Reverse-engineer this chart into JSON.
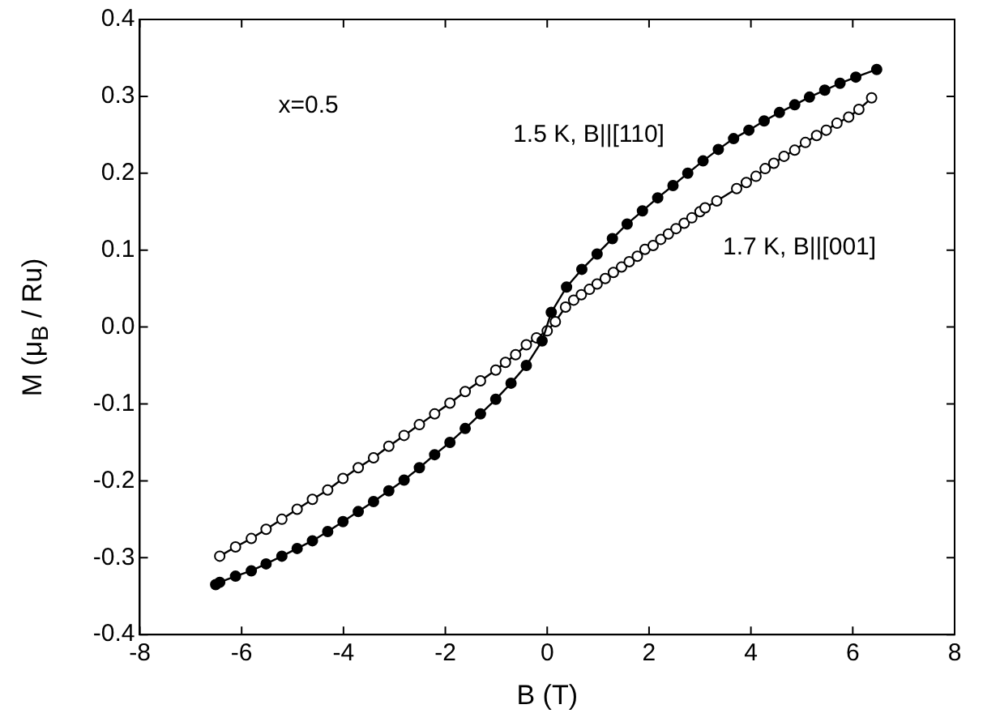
{
  "chart_data": {
    "type": "line",
    "xlabel": "B (T)",
    "ylabel": "M (μ$_{B}$ / Ru)",
    "xlim": [
      -8,
      8
    ],
    "xticks": [
      -8,
      -6,
      -4,
      -2,
      0,
      2,
      4,
      6,
      8
    ],
    "ylim": [
      -0.4,
      0.4
    ],
    "yticks": [
      -0.4,
      -0.3,
      -0.2,
      -0.1,
      {
        "value": 0,
        "label": "0.0"
      },
      0.1,
      0.2,
      0.3,
      0.4
    ],
    "marker": "circle",
    "annotations": [
      "x=0.5"
    ],
    "series": [
      {
        "name": "1.5 K, B||[110]",
        "color": "#000000",
        "x": [
          -6.51,
          -6.43,
          -6.12,
          -5.81,
          -5.52,
          -5.21,
          -4.91,
          -4.61,
          -4.31,
          -4.01,
          -3.71,
          -3.41,
          -3.11,
          -2.81,
          -2.51,
          -2.21,
          -1.91,
          -1.61,
          -1.31,
          -1.01,
          -0.71,
          -0.41,
          -0.1,
          0.08,
          0.38,
          0.68,
          0.98,
          1.28,
          1.57,
          1.87,
          2.17,
          2.47,
          2.76,
          3.06,
          3.36,
          3.66,
          3.96,
          4.26,
          4.56,
          4.86,
          5.15,
          5.45,
          5.75,
          6.06,
          6.47
        ],
        "values": [
          -0.335,
          -0.332,
          -0.324,
          -0.317,
          -0.308,
          -0.298,
          -0.288,
          -0.278,
          -0.266,
          -0.253,
          -0.24,
          -0.227,
          -0.213,
          -0.199,
          -0.183,
          -0.166,
          -0.15,
          -0.132,
          -0.113,
          -0.094,
          -0.073,
          -0.05,
          -0.018,
          0.019,
          0.052,
          0.075,
          0.095,
          0.115,
          0.134,
          0.151,
          0.168,
          0.184,
          0.2,
          0.216,
          0.231,
          0.245,
          0.256,
          0.268,
          0.279,
          0.289,
          0.299,
          0.308,
          0.317,
          0.325,
          0.335
        ]
      },
      {
        "name": "1.7 K, B||[001]",
        "color": "#000000",
        "x": [
          -6.43,
          -6.12,
          -5.81,
          -5.52,
          -5.21,
          -4.91,
          -4.61,
          -4.31,
          -4.01,
          -3.71,
          -3.41,
          -3.11,
          -2.81,
          -2.51,
          -2.21,
          -1.91,
          -1.61,
          -1.31,
          -1.01,
          -0.82,
          -0.62,
          -0.41,
          -0.21,
          0.0,
          0.16,
          0.36,
          0.52,
          0.67,
          0.83,
          0.98,
          1.14,
          1.3,
          1.46,
          1.61,
          1.77,
          1.92,
          2.08,
          2.23,
          2.38,
          2.53,
          2.69,
          2.84,
          3.0,
          3.1,
          3.33,
          3.72,
          3.91,
          4.1,
          4.28,
          4.45,
          4.65,
          4.86,
          5.07,
          5.29,
          5.48,
          5.69,
          5.92,
          6.12,
          6.37
        ],
        "values": [
          -0.298,
          -0.286,
          -0.275,
          -0.263,
          -0.25,
          -0.237,
          -0.224,
          -0.212,
          -0.197,
          -0.183,
          -0.17,
          -0.155,
          -0.141,
          -0.127,
          -0.113,
          -0.099,
          -0.084,
          -0.07,
          -0.056,
          -0.046,
          -0.036,
          -0.023,
          -0.014,
          -0.005,
          0.007,
          0.026,
          0.035,
          0.042,
          0.049,
          0.056,
          0.063,
          0.071,
          0.078,
          0.085,
          0.092,
          0.101,
          0.106,
          0.114,
          0.121,
          0.128,
          0.135,
          0.142,
          0.15,
          0.155,
          0.164,
          0.18,
          0.188,
          0.196,
          0.206,
          0.213,
          0.222,
          0.23,
          0.24,
          0.249,
          0.256,
          0.265,
          0.273,
          0.283,
          0.298
        ]
      }
    ]
  }
}
